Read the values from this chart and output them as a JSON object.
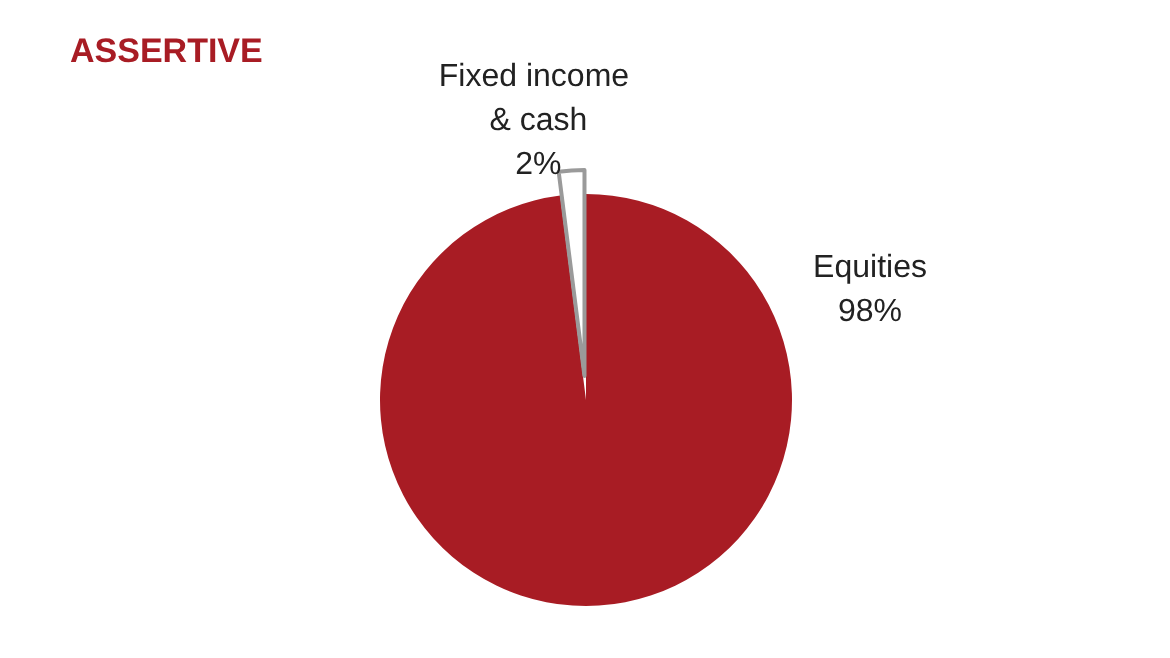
{
  "chart_data": {
    "type": "pie",
    "title": "ASSERTIVE",
    "categories": [
      "Equities",
      "Fixed income & cash"
    ],
    "values": [
      98,
      2
    ],
    "colors": [
      "#a81c24",
      "#ffffff"
    ],
    "legend": false,
    "value_labels": [
      "98%",
      "2%"
    ]
  }
}
